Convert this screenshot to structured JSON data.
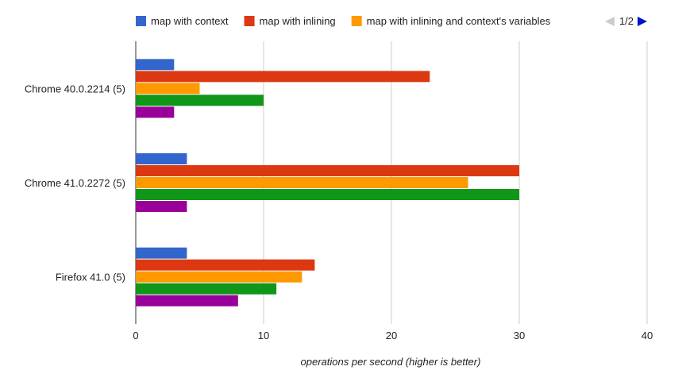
{
  "chart_data": {
    "type": "bar",
    "orientation": "horizontal",
    "categories": [
      "Chrome 40.0.2214 (5)",
      "Chrome 41.0.2272 (5)",
      "Firefox 41.0 (5)"
    ],
    "series": [
      {
        "name": "map with context",
        "color": "#3366cc",
        "values": [
          3,
          4,
          4
        ]
      },
      {
        "name": "map with inlining",
        "color": "#dc3912",
        "values": [
          23,
          30,
          14
        ]
      },
      {
        "name": "map with inlining and context's variables",
        "color": "#ff9900",
        "values": [
          5,
          26,
          13
        ]
      },
      {
        "color": "#109618",
        "values": [
          10,
          30,
          11
        ]
      },
      {
        "color": "#990099",
        "values": [
          3,
          4,
          8
        ]
      }
    ],
    "xlabel": "operations per second (higher is better)",
    "ylabel": "",
    "xlim": [
      0,
      40
    ],
    "xticks": [
      0,
      10,
      20,
      30,
      40
    ],
    "grid": true,
    "legend_position": "top"
  },
  "legend": {
    "pager": {
      "text": "1/2",
      "prev_icon": "triangle-left-icon",
      "next_icon": "triangle-right-icon",
      "prev_color": "#cccccc",
      "next_color": "#0011cc"
    }
  }
}
